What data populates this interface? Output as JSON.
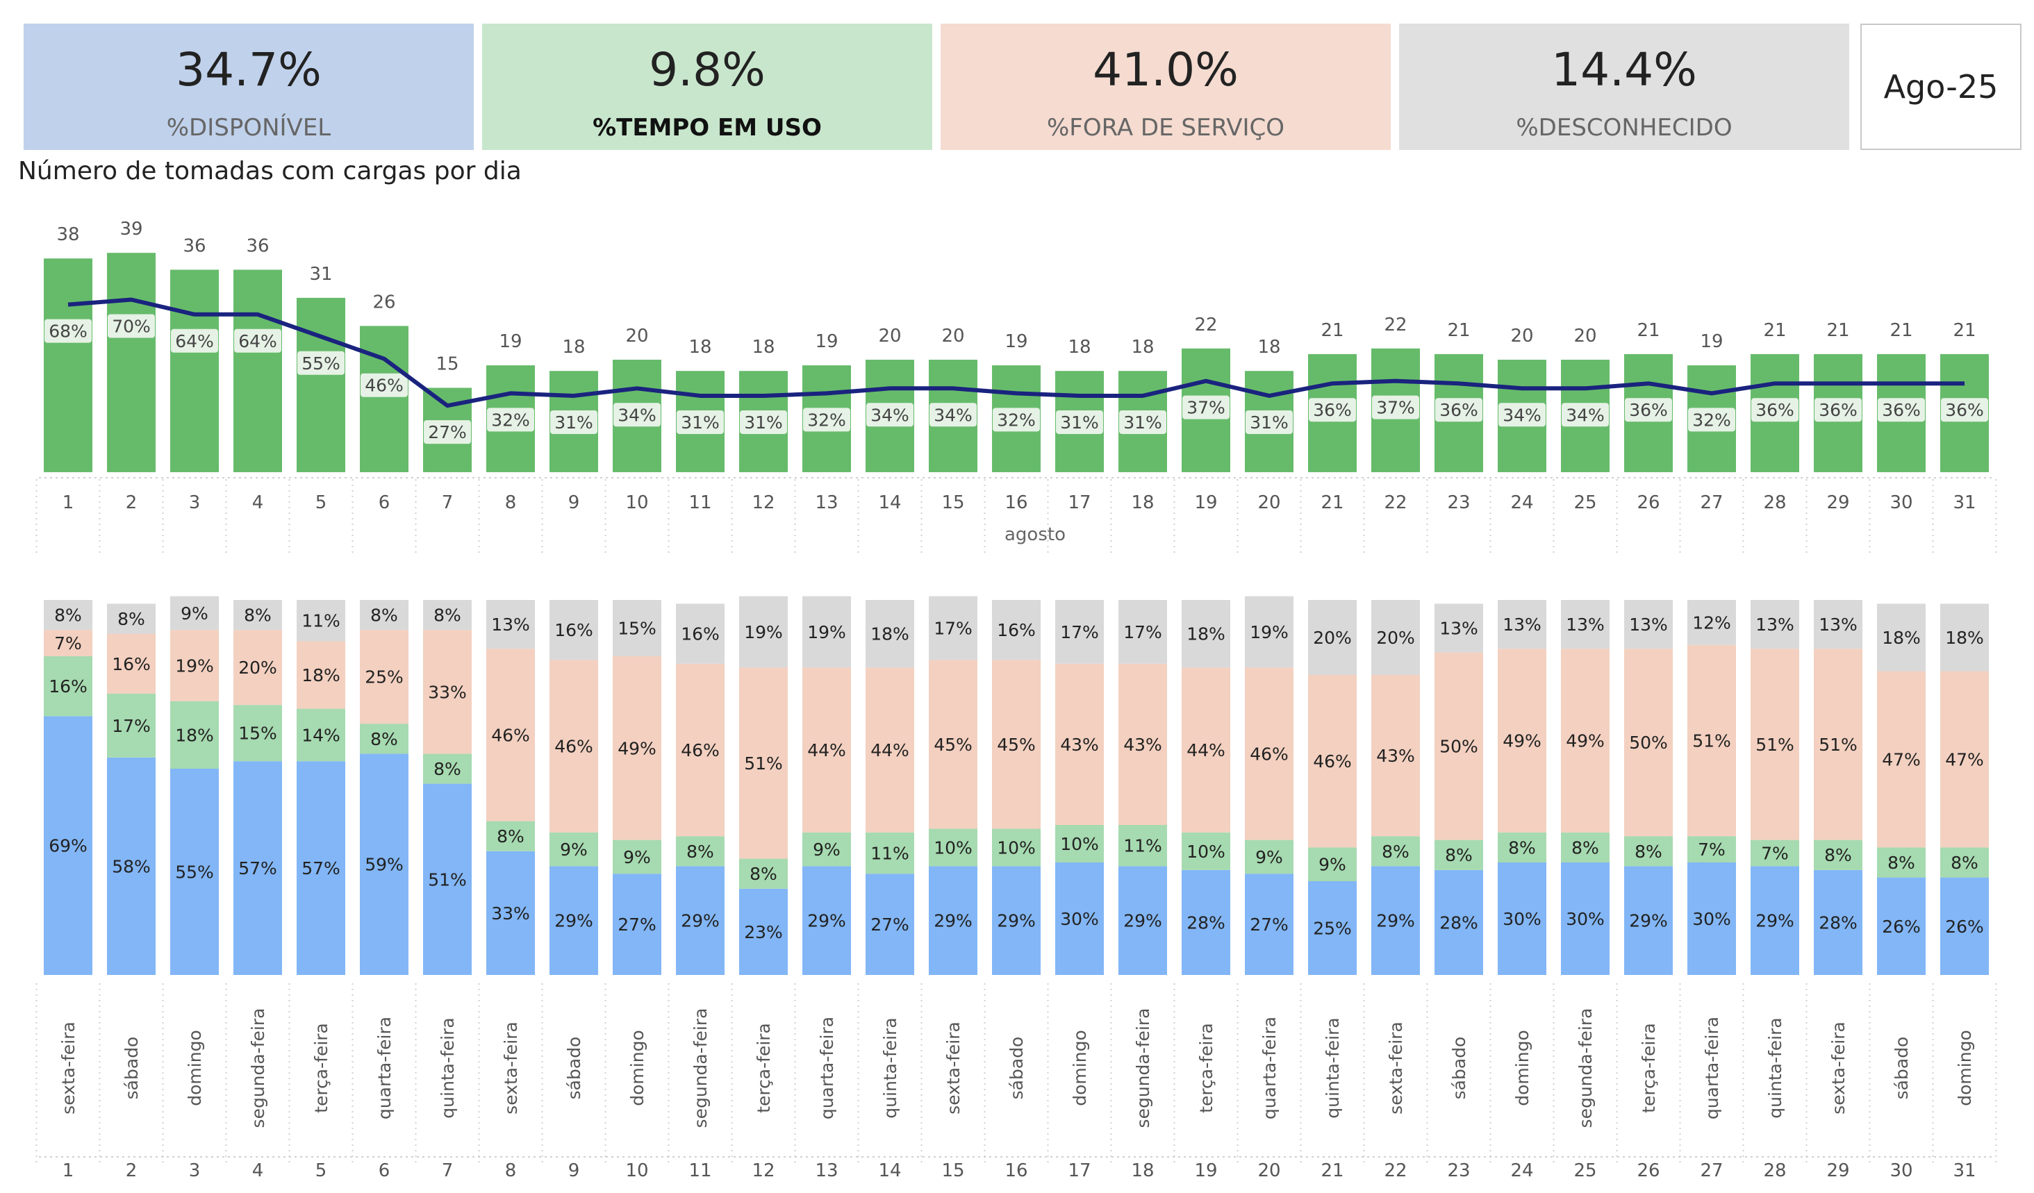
{
  "kpis": [
    {
      "value": "34.7%",
      "label": "%DISPONÍVEL",
      "color": "#c0d1eb"
    },
    {
      "value": "9.8%",
      "label": "%TEMPO EM USO",
      "color": "#c8e6cc"
    },
    {
      "value": "41.0%",
      "label": "%FORA DE SERVIÇO",
      "color": "#f5dbd0"
    },
    {
      "value": "14.4%",
      "label": "%DESCONHECIDO",
      "color": "#e0e0e0"
    }
  ],
  "month": "Ago-25",
  "title": "Número de tomadas com cargas por dia",
  "chart_data": [
    {
      "type": "bar",
      "xlabel": "agosto",
      "categories": [
        "1",
        "2",
        "3",
        "4",
        "5",
        "6",
        "7",
        "8",
        "9",
        "10",
        "11",
        "12",
        "13",
        "14",
        "15",
        "16",
        "17",
        "18",
        "19",
        "20",
        "21",
        "22",
        "23",
        "24",
        "25",
        "26",
        "27",
        "28",
        "29",
        "30",
        "31"
      ],
      "values": [
        38,
        39,
        36,
        36,
        31,
        26,
        15,
        19,
        18,
        20,
        18,
        18,
        19,
        20,
        20,
        19,
        18,
        18,
        22,
        18,
        21,
        22,
        21,
        20,
        20,
        21,
        19,
        21,
        21,
        21,
        21
      ],
      "pct_labels": [
        "68%",
        "70%",
        "64%",
        "64%",
        "55%",
        "46%",
        "27%",
        "32%",
        "31%",
        "34%",
        "31%",
        "31%",
        "32%",
        "34%",
        "34%",
        "32%",
        "31%",
        "31%",
        "37%",
        "31%",
        "36%",
        "37%",
        "36%",
        "34%",
        "34%",
        "36%",
        "32%",
        "36%",
        "36%",
        "36%",
        "36%"
      ],
      "line_values": [
        68,
        70,
        64,
        64,
        55,
        46,
        27,
        32,
        31,
        34,
        31,
        31,
        32,
        34,
        34,
        32,
        31,
        31,
        37,
        31,
        36,
        37,
        36,
        34,
        34,
        36,
        32,
        36,
        36,
        36,
        36
      ],
      "colors": {
        "bar": "#66bb6a",
        "line": "#1a237e"
      }
    },
    {
      "type": "bar",
      "stacked": true,
      "categories": [
        "1",
        "2",
        "3",
        "4",
        "5",
        "6",
        "7",
        "8",
        "9",
        "10",
        "11",
        "12",
        "13",
        "14",
        "15",
        "16",
        "17",
        "18",
        "19",
        "20",
        "21",
        "22",
        "23",
        "24",
        "25",
        "26",
        "27",
        "28",
        "29",
        "30",
        "31"
      ],
      "weekdays": [
        "sexta-feira",
        "sábado",
        "domingo",
        "segunda-feira",
        "terça-feira",
        "quarta-feira",
        "quinta-feira",
        "sexta-feira",
        "sábado",
        "domingo",
        "segunda-feira",
        "terça-feira",
        "quarta-feira",
        "quinta-feira",
        "sexta-feira",
        "sábado",
        "domingo",
        "segunda-feira",
        "terça-feira",
        "quarta-feira",
        "quinta-feira",
        "sexta-feira",
        "sábado",
        "domingo",
        "segunda-feira",
        "terça-feira",
        "quarta-feira",
        "quinta-feira",
        "sexta-feira",
        "sábado",
        "domingo"
      ],
      "series": [
        {
          "color": "#82b6f6",
          "values": [
            69,
            58,
            55,
            57,
            57,
            59,
            51,
            33,
            29,
            27,
            29,
            23,
            29,
            27,
            29,
            29,
            30,
            29,
            28,
            27,
            25,
            29,
            28,
            30,
            30,
            29,
            30,
            29,
            28,
            26,
            26
          ]
        },
        {
          "color": "#a6dab0",
          "values": [
            16,
            17,
            18,
            15,
            14,
            8,
            8,
            8,
            9,
            9,
            8,
            8,
            9,
            11,
            10,
            10,
            10,
            11,
            10,
            9,
            9,
            8,
            8,
            8,
            8,
            8,
            7,
            7,
            8,
            8,
            8
          ]
        },
        {
          "color": "#f3d0c0",
          "values": [
            7,
            16,
            19,
            20,
            18,
            25,
            33,
            46,
            46,
            49,
            46,
            51,
            44,
            44,
            45,
            45,
            43,
            43,
            44,
            46,
            46,
            43,
            50,
            49,
            49,
            50,
            51,
            51,
            51,
            47,
            47
          ]
        },
        {
          "color": "#d9d9d9",
          "values": [
            8,
            8,
            9,
            8,
            11,
            8,
            8,
            13,
            16,
            15,
            16,
            19,
            19,
            18,
            17,
            16,
            17,
            17,
            18,
            19,
            20,
            20,
            13,
            13,
            13,
            13,
            12,
            13,
            13,
            18,
            18
          ]
        }
      ]
    }
  ]
}
